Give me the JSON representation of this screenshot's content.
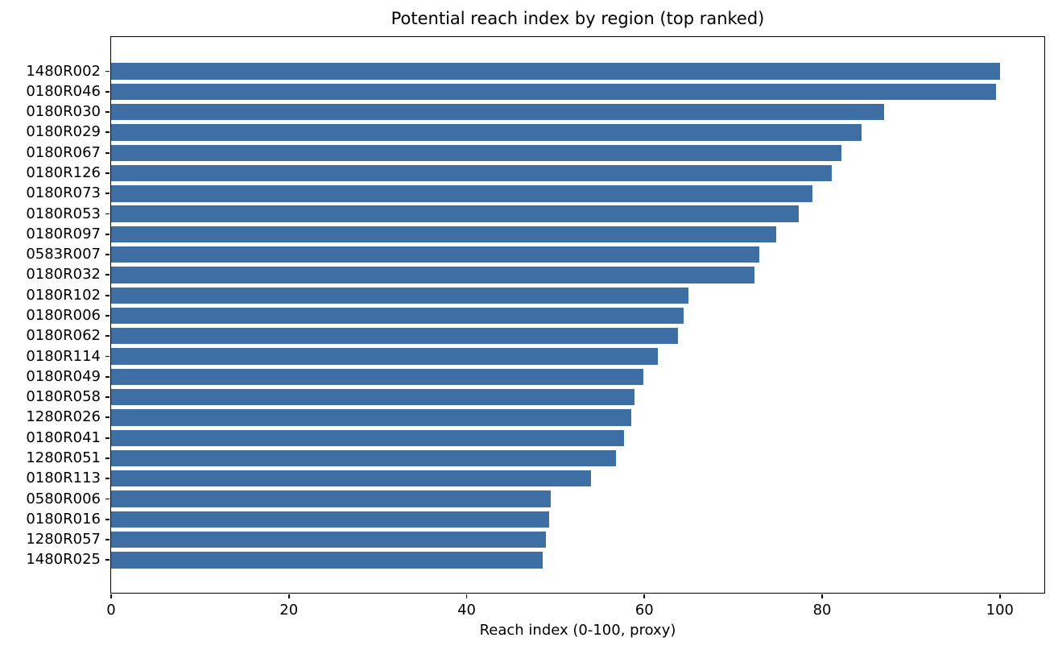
{
  "title": "Potential reach index by region (top ranked)",
  "chart_data": {
    "type": "bar",
    "orientation": "horizontal",
    "title": "Potential reach index by region (top ranked)",
    "xlabel": "Reach index (0-100, proxy)",
    "ylabel": "",
    "xlim": [
      0,
      105
    ],
    "xticks": [
      0,
      20,
      40,
      60,
      80,
      100
    ],
    "xtick_labels": [
      "0",
      "20",
      "40",
      "60",
      "80",
      "100"
    ],
    "grid": false,
    "legend": null,
    "bar_color": "#3d6fa5",
    "axis_color": "#000000",
    "background_color": "#ffffff",
    "categories": [
      "1480R002",
      "0180R046",
      "0180R030",
      "0180R029",
      "0180R067",
      "0180R126",
      "0180R073",
      "0180R053",
      "0180R097",
      "0583R007",
      "0180R032",
      "0180R102",
      "0180R006",
      "0180R062",
      "0180R114",
      "0180R049",
      "0180R058",
      "1280R026",
      "0180R041",
      "1280R051",
      "0180R113",
      "0580R006",
      "0180R016",
      "1280R057",
      "1480R025"
    ],
    "values": [
      100.0,
      99.6,
      87.0,
      84.4,
      82.2,
      81.1,
      78.9,
      77.4,
      74.8,
      72.9,
      72.4,
      65.0,
      64.4,
      63.8,
      61.5,
      59.9,
      58.9,
      58.5,
      57.7,
      56.8,
      54.0,
      49.5,
      49.3,
      48.9,
      48.6
    ]
  }
}
